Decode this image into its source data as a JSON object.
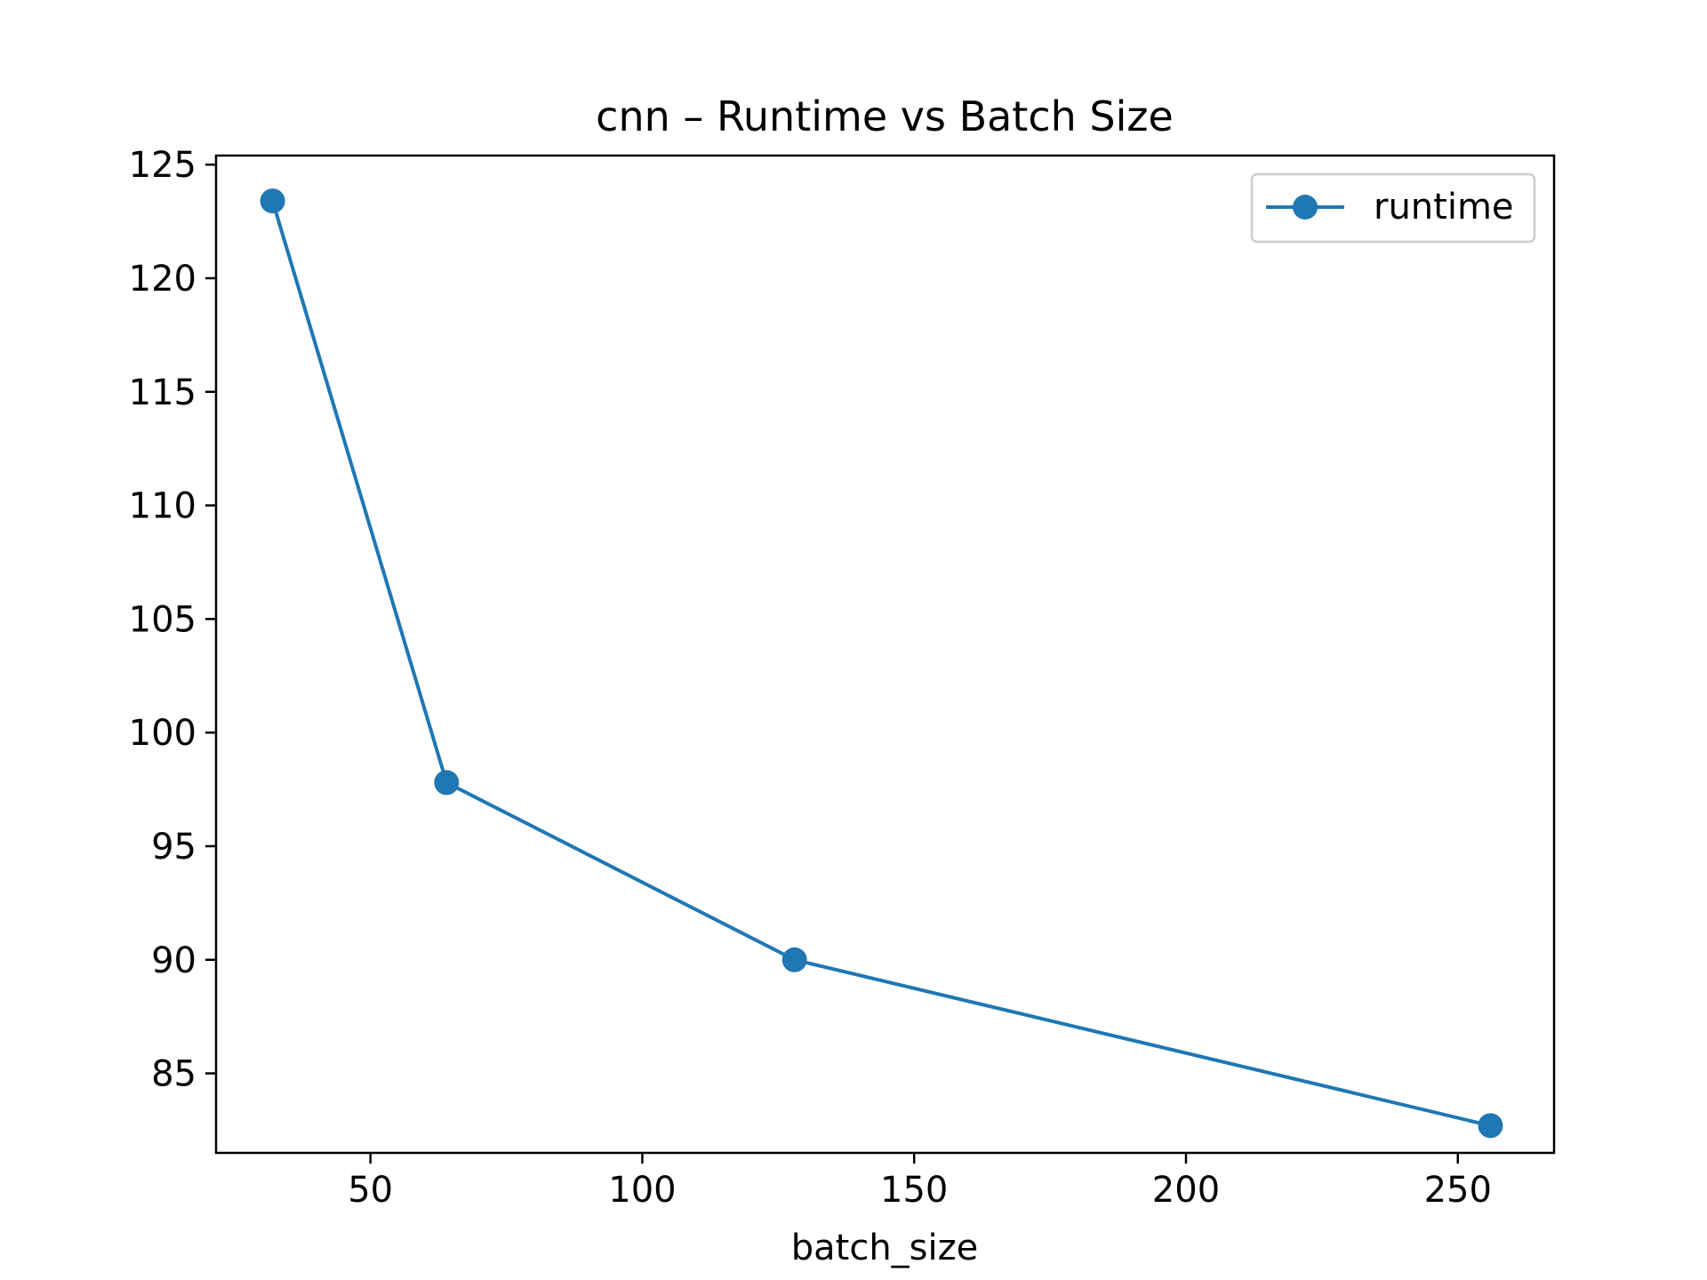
{
  "chart_data": {
    "type": "line",
    "title": "cnn – Runtime vs Batch Size",
    "xlabel": "batch_size",
    "ylabel": "",
    "x": [
      32,
      64,
      128,
      256
    ],
    "series": [
      {
        "name": "runtime",
        "values": [
          123.4,
          97.8,
          90.0,
          82.7
        ],
        "color": "#1f77b4",
        "marker": "circle"
      }
    ],
    "xlim": [
      21.6,
      267.7
    ],
    "ylim": [
      81.5,
      125.4
    ],
    "xticks": [
      50,
      100,
      150,
      200,
      250
    ],
    "yticks": [
      85,
      90,
      95,
      100,
      105,
      110,
      115,
      120,
      125
    ],
    "grid": false,
    "legend": "top-right"
  }
}
